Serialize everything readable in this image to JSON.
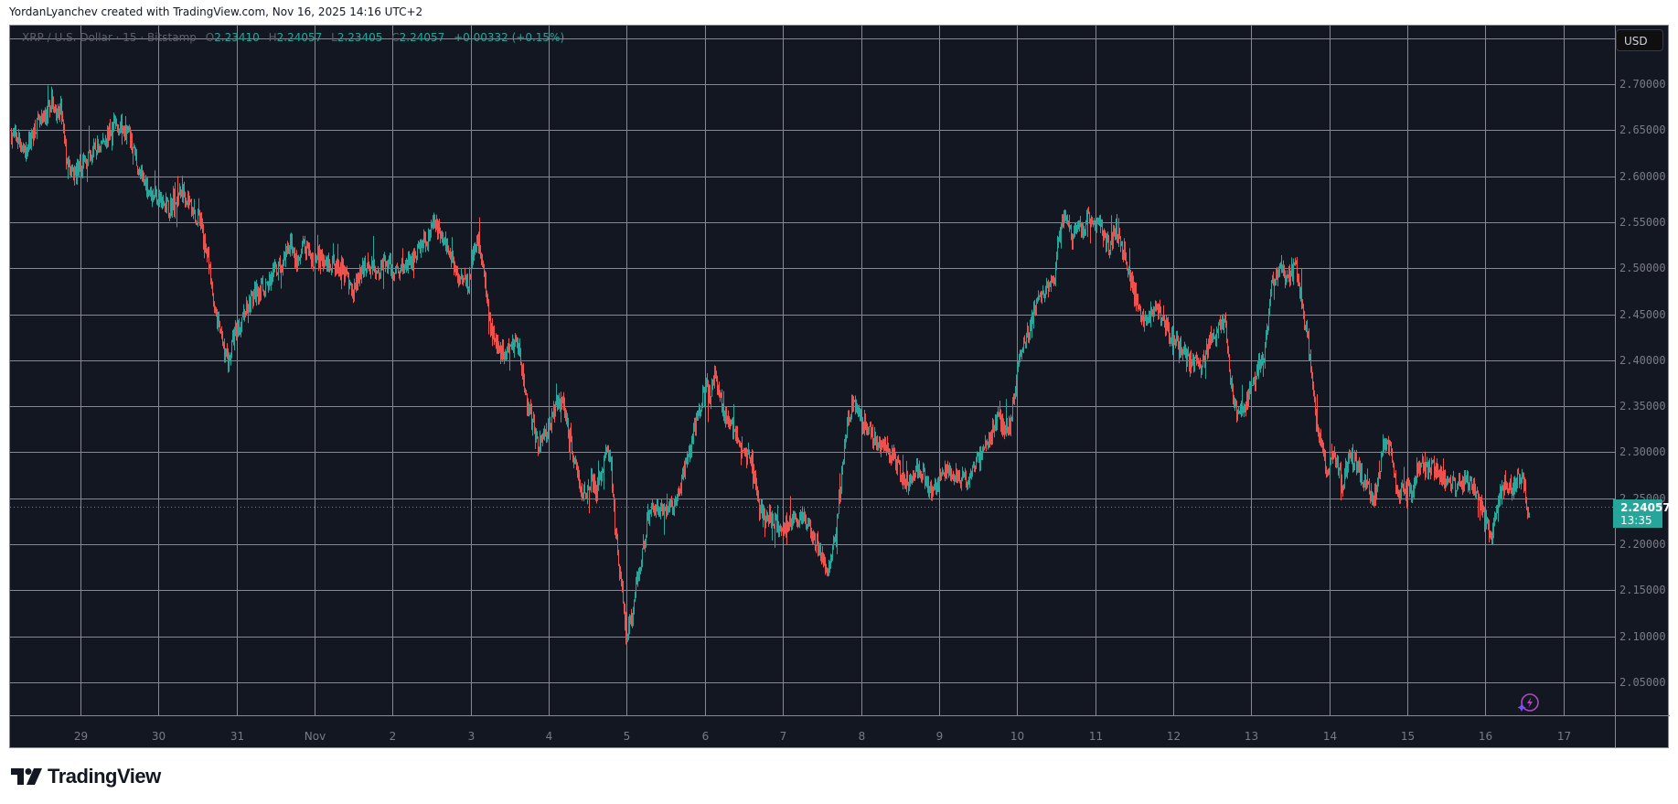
{
  "caption": "YordanLyanchev created with TradingView.com, Nov 16, 2025 14:16 UTC+2",
  "legend": {
    "symbol": "XRP / U.S. Dollar · 15 · Bitstamp",
    "open_label": "O",
    "open": "2.23410",
    "high_label": "H",
    "high": "2.24057",
    "low_label": "L",
    "low": "2.23405",
    "close_label": "C",
    "close": "2.24057",
    "change": "+0.00332 (+0.15%)"
  },
  "currency_button": "USD",
  "last_price": {
    "price": "2.24057",
    "countdown": "13:35"
  },
  "brand": "TradingView",
  "colors": {
    "background": "#131722",
    "grid": "#868993",
    "up": "#26a69a",
    "down": "#ef5350",
    "axis_text": "#787b86",
    "legend_text": "#5d606b"
  },
  "chart_data": {
    "type": "candlestick",
    "title": "XRP / U.S. Dollar · 15 · Bitstamp",
    "interval": "15",
    "exchange": "Bitstamp",
    "xlabel": "",
    "ylabel": "USD",
    "ylim": [
      2.01,
      2.74
    ],
    "grid": true,
    "y_ticks": [
      "2.70000",
      "2.65000",
      "2.60000",
      "2.55000",
      "2.50000",
      "2.45000",
      "2.40000",
      "2.35000",
      "2.30000",
      "2.25000",
      "2.20000",
      "2.15000",
      "2.10000",
      "2.05000"
    ],
    "x_ticks": [
      "29",
      "30",
      "31",
      "Nov",
      "2",
      "3",
      "4",
      "5",
      "6",
      "7",
      "8",
      "9",
      "10",
      "11",
      "12",
      "13",
      "14",
      "15",
      "16",
      "17"
    ],
    "last_close": 2.24057,
    "path_points": [
      [
        12,
        2.645
      ],
      [
        20,
        2.64
      ],
      [
        28,
        2.625
      ],
      [
        38,
        2.655
      ],
      [
        48,
        2.66
      ],
      [
        56,
        2.685
      ],
      [
        62,
        2.66
      ],
      [
        66,
        2.675
      ],
      [
        72,
        2.62
      ],
      [
        78,
        2.6
      ],
      [
        88,
        2.61
      ],
      [
        100,
        2.625
      ],
      [
        110,
        2.635
      ],
      [
        125,
        2.655
      ],
      [
        135,
        2.655
      ],
      [
        142,
        2.64
      ],
      [
        148,
        2.62
      ],
      [
        152,
        2.6
      ],
      [
        158,
        2.595
      ],
      [
        165,
        2.58
      ],
      [
        172,
        2.58
      ],
      [
        180,
        2.565
      ],
      [
        190,
        2.57
      ],
      [
        200,
        2.585
      ],
      [
        205,
        2.575
      ],
      [
        212,
        2.56
      ],
      [
        220,
        2.545
      ],
      [
        226,
        2.515
      ],
      [
        232,
        2.47
      ],
      [
        238,
        2.44
      ],
      [
        245,
        2.41
      ],
      [
        250,
        2.4
      ],
      [
        256,
        2.43
      ],
      [
        262,
        2.44
      ],
      [
        270,
        2.46
      ],
      [
        280,
        2.475
      ],
      [
        290,
        2.48
      ],
      [
        300,
        2.495
      ],
      [
        310,
        2.505
      ],
      [
        318,
        2.53
      ],
      [
        325,
        2.5
      ],
      [
        332,
        2.525
      ],
      [
        340,
        2.505
      ],
      [
        350,
        2.51
      ],
      [
        360,
        2.505
      ],
      [
        370,
        2.5
      ],
      [
        378,
        2.495
      ],
      [
        385,
        2.47
      ],
      [
        392,
        2.49
      ],
      [
        400,
        2.505
      ],
      [
        410,
        2.5
      ],
      [
        420,
        2.505
      ],
      [
        430,
        2.5
      ],
      [
        440,
        2.5
      ],
      [
        450,
        2.51
      ],
      [
        460,
        2.525
      ],
      [
        468,
        2.535
      ],
      [
        475,
        2.55
      ],
      [
        480,
        2.54
      ],
      [
        487,
        2.525
      ],
      [
        494,
        2.51
      ],
      [
        500,
        2.49
      ],
      [
        506,
        2.495
      ],
      [
        512,
        2.48
      ],
      [
        518,
        2.525
      ],
      [
        522,
        2.53
      ],
      [
        527,
        2.51
      ],
      [
        532,
        2.46
      ],
      [
        538,
        2.43
      ],
      [
        545,
        2.415
      ],
      [
        552,
        2.405
      ],
      [
        558,
        2.415
      ],
      [
        565,
        2.42
      ],
      [
        570,
        2.395
      ],
      [
        575,
        2.36
      ],
      [
        582,
        2.33
      ],
      [
        588,
        2.31
      ],
      [
        595,
        2.32
      ],
      [
        600,
        2.33
      ],
      [
        607,
        2.35
      ],
      [
        613,
        2.36
      ],
      [
        620,
        2.335
      ],
      [
        628,
        2.29
      ],
      [
        634,
        2.265
      ],
      [
        640,
        2.255
      ],
      [
        645,
        2.27
      ],
      [
        652,
        2.255
      ],
      [
        658,
        2.28
      ],
      [
        663,
        2.305
      ],
      [
        668,
        2.285
      ],
      [
        672,
        2.22
      ],
      [
        677,
        2.17
      ],
      [
        682,
        2.13
      ],
      [
        685,
        2.09
      ],
      [
        690,
        2.12
      ],
      [
        696,
        2.16
      ],
      [
        702,
        2.19
      ],
      [
        708,
        2.23
      ],
      [
        715,
        2.245
      ],
      [
        722,
        2.235
      ],
      [
        730,
        2.245
      ],
      [
        738,
        2.24
      ],
      [
        745,
        2.27
      ],
      [
        752,
        2.29
      ],
      [
        758,
        2.32
      ],
      [
        765,
        2.35
      ],
      [
        770,
        2.375
      ],
      [
        776,
        2.36
      ],
      [
        781,
        2.385
      ],
      [
        786,
        2.36
      ],
      [
        792,
        2.34
      ],
      [
        798,
        2.335
      ],
      [
        804,
        2.32
      ],
      [
        812,
        2.3
      ],
      [
        820,
        2.295
      ],
      [
        826,
        2.27
      ],
      [
        830,
        2.24
      ],
      [
        836,
        2.225
      ],
      [
        842,
        2.235
      ],
      [
        848,
        2.22
      ],
      [
        855,
        2.215
      ],
      [
        862,
        2.225
      ],
      [
        870,
        2.23
      ],
      [
        878,
        2.225
      ],
      [
        884,
        2.22
      ],
      [
        890,
        2.21
      ],
      [
        896,
        2.195
      ],
      [
        902,
        2.17
      ],
      [
        908,
        2.18
      ],
      [
        914,
        2.21
      ],
      [
        920,
        2.28
      ],
      [
        925,
        2.325
      ],
      [
        932,
        2.355
      ],
      [
        938,
        2.34
      ],
      [
        944,
        2.33
      ],
      [
        950,
        2.325
      ],
      [
        957,
        2.31
      ],
      [
        964,
        2.31
      ],
      [
        970,
        2.3
      ],
      [
        976,
        2.295
      ],
      [
        983,
        2.28
      ],
      [
        990,
        2.265
      ],
      [
        996,
        2.27
      ],
      [
        1002,
        2.28
      ],
      [
        1010,
        2.275
      ],
      [
        1016,
        2.255
      ],
      [
        1022,
        2.26
      ],
      [
        1030,
        2.275
      ],
      [
        1038,
        2.28
      ],
      [
        1045,
        2.275
      ],
      [
        1052,
        2.27
      ],
      [
        1058,
        2.265
      ],
      [
        1064,
        2.29
      ],
      [
        1070,
        2.29
      ],
      [
        1078,
        2.31
      ],
      [
        1084,
        2.32
      ],
      [
        1090,
        2.335
      ],
      [
        1096,
        2.33
      ],
      [
        1102,
        2.325
      ],
      [
        1108,
        2.355
      ],
      [
        1114,
        2.4
      ],
      [
        1120,
        2.42
      ],
      [
        1126,
        2.435
      ],
      [
        1133,
        2.465
      ],
      [
        1140,
        2.47
      ],
      [
        1148,
        2.48
      ],
      [
        1153,
        2.49
      ],
      [
        1156,
        2.52
      ],
      [
        1160,
        2.545
      ],
      [
        1166,
        2.56
      ],
      [
        1172,
        2.525
      ],
      [
        1178,
        2.545
      ],
      [
        1184,
        2.535
      ],
      [
        1190,
        2.56
      ],
      [
        1196,
        2.55
      ],
      [
        1202,
        2.555
      ],
      [
        1207,
        2.535
      ],
      [
        1213,
        2.52
      ],
      [
        1220,
        2.545
      ],
      [
        1226,
        2.525
      ],
      [
        1232,
        2.505
      ],
      [
        1238,
        2.48
      ],
      [
        1244,
        2.46
      ],
      [
        1250,
        2.445
      ],
      [
        1256,
        2.45
      ],
      [
        1262,
        2.455
      ],
      [
        1268,
        2.45
      ],
      [
        1274,
        2.44
      ],
      [
        1280,
        2.425
      ],
      [
        1286,
        2.425
      ],
      [
        1292,
        2.41
      ],
      [
        1298,
        2.4
      ],
      [
        1305,
        2.395
      ],
      [
        1312,
        2.395
      ],
      [
        1318,
        2.405
      ],
      [
        1324,
        2.425
      ],
      [
        1330,
        2.43
      ],
      [
        1335,
        2.445
      ],
      [
        1339,
        2.44
      ],
      [
        1343,
        2.4
      ],
      [
        1347,
        2.36
      ],
      [
        1352,
        2.34
      ],
      [
        1358,
        2.345
      ],
      [
        1364,
        2.36
      ],
      [
        1370,
        2.37
      ],
      [
        1376,
        2.395
      ],
      [
        1382,
        2.405
      ],
      [
        1386,
        2.445
      ],
      [
        1390,
        2.48
      ],
      [
        1395,
        2.495
      ],
      [
        1400,
        2.5
      ],
      [
        1406,
        2.49
      ],
      [
        1412,
        2.495
      ],
      [
        1417,
        2.5
      ],
      [
        1422,
        2.47
      ],
      [
        1426,
        2.445
      ],
      [
        1430,
        2.42
      ],
      [
        1434,
        2.38
      ],
      [
        1438,
        2.34
      ],
      [
        1442,
        2.32
      ],
      [
        1446,
        2.3
      ],
      [
        1452,
        2.28
      ],
      [
        1458,
        2.3
      ],
      [
        1462,
        2.29
      ],
      [
        1468,
        2.265
      ],
      [
        1474,
        2.29
      ],
      [
        1480,
        2.295
      ],
      [
        1486,
        2.28
      ],
      [
        1490,
        2.27
      ],
      [
        1496,
        2.26
      ],
      [
        1500,
        2.25
      ],
      [
        1505,
        2.26
      ],
      [
        1512,
        2.305
      ],
      [
        1518,
        2.31
      ],
      [
        1524,
        2.28
      ],
      [
        1528,
        2.255
      ],
      [
        1533,
        2.265
      ],
      [
        1538,
        2.26
      ],
      [
        1544,
        2.25
      ],
      [
        1548,
        2.28
      ],
      [
        1552,
        2.29
      ],
      [
        1557,
        2.285
      ],
      [
        1562,
        2.28
      ],
      [
        1568,
        2.28
      ],
      [
        1574,
        2.28
      ],
      [
        1580,
        2.27
      ],
      [
        1586,
        2.27
      ],
      [
        1592,
        2.26
      ],
      [
        1598,
        2.265
      ],
      [
        1604,
        2.27
      ],
      [
        1610,
        2.265
      ],
      [
        1616,
        2.255
      ],
      [
        1620,
        2.24
      ],
      [
        1624,
        2.225
      ],
      [
        1628,
        2.215
      ],
      [
        1632,
        2.21
      ],
      [
        1636,
        2.24
      ],
      [
        1640,
        2.255
      ],
      [
        1645,
        2.265
      ],
      [
        1650,
        2.26
      ],
      [
        1655,
        2.265
      ],
      [
        1660,
        2.27
      ],
      [
        1664,
        2.275
      ],
      [
        1667,
        2.26
      ],
      [
        1669,
        2.24
      ],
      [
        1672,
        2.238
      ]
    ]
  }
}
